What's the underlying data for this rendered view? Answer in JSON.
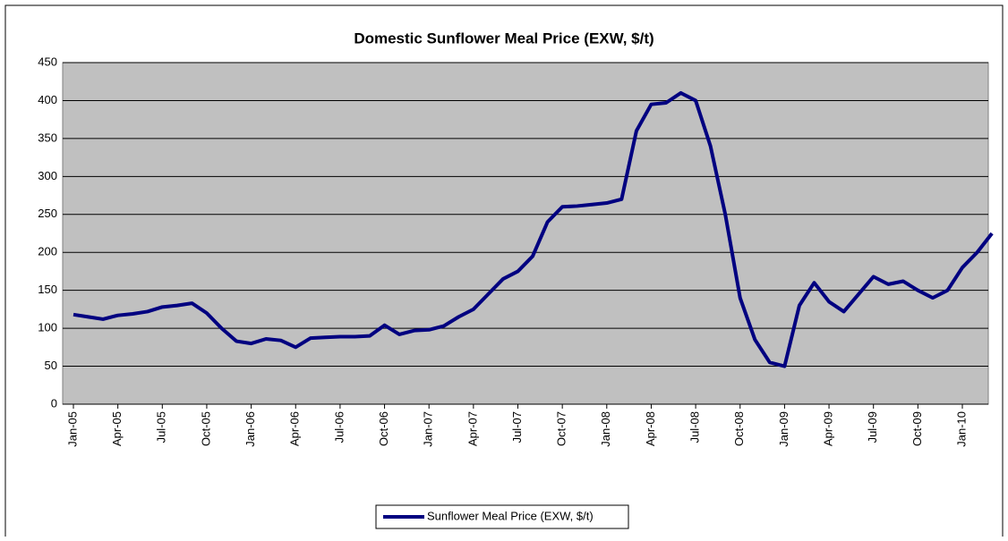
{
  "chart_data": {
    "type": "line",
    "title": "Domestic Sunflower Meal Price (EXW, $/t)",
    "categories": [
      "Jan-05",
      null,
      null,
      "Apr-05",
      null,
      null,
      "Jul-05",
      null,
      null,
      "Oct-05",
      null,
      null,
      "Jan-06",
      null,
      null,
      "Apr-06",
      null,
      null,
      "Jul-06",
      null,
      null,
      "Oct-06",
      null,
      null,
      "Jan-07",
      null,
      null,
      "Apr-07",
      null,
      null,
      "Jul-07",
      null,
      null,
      "Oct-07",
      null,
      null,
      "Jan-08",
      null,
      null,
      "Apr-08",
      null,
      null,
      "Jul-08",
      null,
      null,
      "Oct-08",
      null,
      null,
      "Jan-09",
      null,
      null,
      "Apr-09",
      null,
      null,
      "Jul-09",
      null,
      null,
      "Oct-09",
      null,
      null,
      "Jan-10",
      null,
      null
    ],
    "series": [
      {
        "name": "Sunflower Meal Price (EXW, $/t)",
        "color": "#000080",
        "values": [
          118,
          115,
          112,
          117,
          119,
          122,
          128,
          130,
          133,
          120,
          100,
          83,
          80,
          86,
          84,
          75,
          87,
          88,
          89,
          89,
          90,
          104,
          92,
          97,
          98,
          103,
          115,
          125,
          145,
          165,
          175,
          195,
          240,
          260,
          261,
          263,
          265,
          270,
          360,
          395,
          397,
          410,
          400,
          340,
          250,
          140,
          85,
          55,
          50,
          130,
          160,
          135,
          122,
          145,
          168,
          158,
          162,
          150,
          140,
          150,
          180,
          200,
          225
        ]
      }
    ],
    "ylim": [
      0,
      450
    ],
    "yticks": [
      0,
      50,
      100,
      150,
      200,
      250,
      300,
      350,
      400,
      450
    ],
    "grid": true,
    "legend": "bottom"
  }
}
